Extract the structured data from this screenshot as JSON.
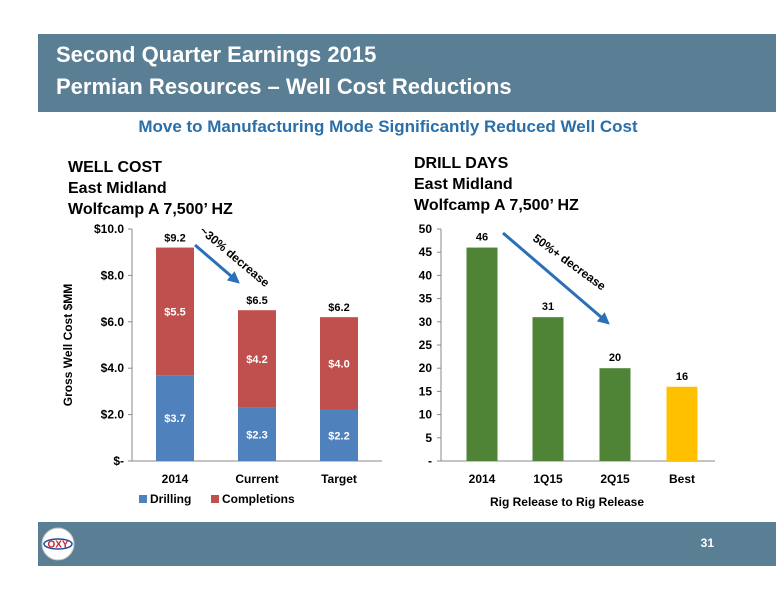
{
  "header": {
    "title_line1": "Second Quarter Earnings 2015",
    "title_line2": "Permian Resources – Well Cost Reductions"
  },
  "subtitle": "Move to Manufacturing Mode Significantly Reduced Well Cost",
  "chart_data": [
    {
      "type": "bar",
      "stacked": true,
      "title_lines": [
        "WELL COST",
        "East Midland",
        "Wolfcamp A 7,500’ HZ"
      ],
      "ylabel": "Gross Well Cost $MM",
      "xlabel": "",
      "categories": [
        "2014",
        "Current",
        "Target"
      ],
      "series": [
        {
          "name": "Drilling",
          "values": [
            3.7,
            2.3,
            2.2
          ],
          "labels": [
            "$3.7",
            "$2.3",
            "$2.2"
          ],
          "color": "#4f81bd"
        },
        {
          "name": "Completions",
          "values": [
            5.5,
            4.2,
            4.0
          ],
          "labels": [
            "$5.5",
            "$4.2",
            "$4.0"
          ],
          "color": "#c0504d"
        }
      ],
      "totals": [
        9.2,
        6.5,
        6.2
      ],
      "total_labels": [
        "$9.2",
        "$6.5",
        "$6.2"
      ],
      "ylim": [
        0,
        10
      ],
      "yticks": [
        0,
        2,
        4,
        6,
        8,
        10
      ],
      "ytick_labels": [
        "$-",
        "$2.0",
        "$4.0",
        "$6.0",
        "$8.0",
        "$10.0"
      ],
      "grid": false,
      "legend": "bottom",
      "annotation": "~30% decrease"
    },
    {
      "type": "bar",
      "title_lines": [
        "DRILL DAYS",
        "East Midland",
        "Wolfcamp A 7,500’ HZ"
      ],
      "xlabel": "Rig Release to Rig Release",
      "ylabel": "",
      "categories": [
        "2014",
        "1Q15",
        "2Q15",
        "Best"
      ],
      "values": [
        46,
        31,
        20,
        16
      ],
      "value_labels": [
        "46",
        "31",
        "20",
        "16"
      ],
      "colors": [
        "#4f8436",
        "#4f8436",
        "#4f8436",
        "#ffc000"
      ],
      "ylim": [
        0,
        50
      ],
      "yticks": [
        0,
        5,
        10,
        15,
        20,
        25,
        30,
        35,
        40,
        45,
        50
      ],
      "ytick_labels": [
        "-",
        "5",
        "10",
        "15",
        "20",
        "25",
        "30",
        "35",
        "40",
        "45",
        "50"
      ],
      "grid": false,
      "legend": "none",
      "annotation": "50%+ decrease"
    }
  ],
  "footer": {
    "page_number": "31",
    "logo_text": "OXY"
  },
  "colors": {
    "header_bg": "#5a7e94",
    "subtitle": "#2a6fa8",
    "arrow": "#2a6fb8"
  }
}
